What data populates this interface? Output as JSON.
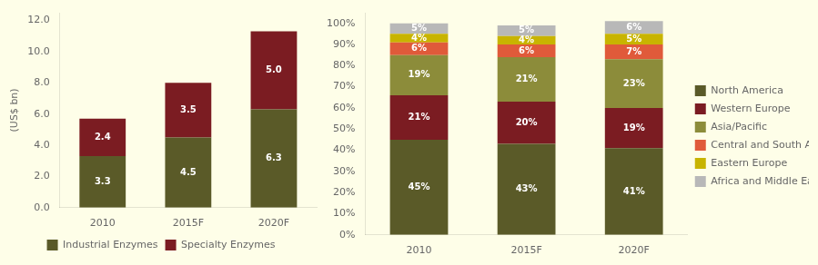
{
  "chart_data": [
    {
      "type": "bar",
      "stacked": true,
      "grid": false,
      "legend": "bottom",
      "data_labels": true,
      "ylabel": "(US$ bn)",
      "categories": [
        "2010",
        "2015F",
        "2020F"
      ],
      "series": [
        {
          "name": "Industrial Enzymes",
          "color": "#5a5a28",
          "values": [
            3.3,
            4.5,
            6.3
          ]
        },
        {
          "name": "Specialty Enzymes",
          "color": "#7b1c22",
          "values": [
            2.4,
            3.5,
            5.0
          ],
          "value_labels": [
            "2.4",
            "3.5",
            "5.0"
          ]
        }
      ],
      "ylim": [
        0,
        12.5
      ],
      "yticks": [
        {
          "value": 0,
          "label": "0.0"
        },
        {
          "value": 2,
          "label": "2.0"
        },
        {
          "value": 4,
          "label": "4.0"
        },
        {
          "value": 6,
          "label": "6.0"
        },
        {
          "value": 8,
          "label": "8.0"
        },
        {
          "value": 10,
          "label": "10.0"
        },
        {
          "value": 12,
          "label": "12.0"
        }
      ]
    },
    {
      "type": "bar",
      "stacked": true,
      "grid": false,
      "legend": "right",
      "data_labels": true,
      "categories": [
        "2010",
        "2015F",
        "2020F"
      ],
      "series": [
        {
          "name": "North America",
          "color": "#5a5a28",
          "values": [
            45,
            43,
            41
          ],
          "value_labels": [
            "45%",
            "43%",
            "41%"
          ]
        },
        {
          "name": "Western Europe",
          "color": "#7b1c22",
          "values": [
            21,
            20,
            19
          ],
          "value_labels": [
            "21%",
            "20%",
            "19%"
          ]
        },
        {
          "name": "Asia/Pacific",
          "color": "#8c8c3a",
          "values": [
            19,
            21,
            23
          ],
          "value_labels": [
            "19%",
            "21%",
            "23%"
          ]
        },
        {
          "name": "Central and South America",
          "color": "#e05a3a",
          "values": [
            6,
            6,
            7
          ],
          "value_labels": [
            "6%",
            "6%",
            "7%"
          ]
        },
        {
          "name": "Eastern Europe",
          "color": "#c8b400",
          "values": [
            4,
            4,
            5
          ],
          "value_labels": [
            "4%",
            "4%",
            "5%"
          ]
        },
        {
          "name": "Africa and Middle East",
          "color": "#b8b8b8",
          "values": [
            5,
            5,
            6
          ],
          "value_labels": [
            "5%",
            "5%",
            "6%"
          ]
        }
      ],
      "ylim": [
        0,
        105
      ],
      "yticks": [
        {
          "value": 0,
          "label": "0%"
        },
        {
          "value": 10,
          "label": "10%"
        },
        {
          "value": 20,
          "label": "20%"
        },
        {
          "value": 30,
          "label": "30%"
        },
        {
          "value": 40,
          "label": "40%"
        },
        {
          "value": 50,
          "label": "50%"
        },
        {
          "value": 60,
          "label": "60%"
        },
        {
          "value": 70,
          "label": "70%"
        },
        {
          "value": 80,
          "label": "80%"
        },
        {
          "value": 90,
          "label": "90%"
        },
        {
          "value": 100,
          "label": "100%"
        }
      ]
    }
  ]
}
